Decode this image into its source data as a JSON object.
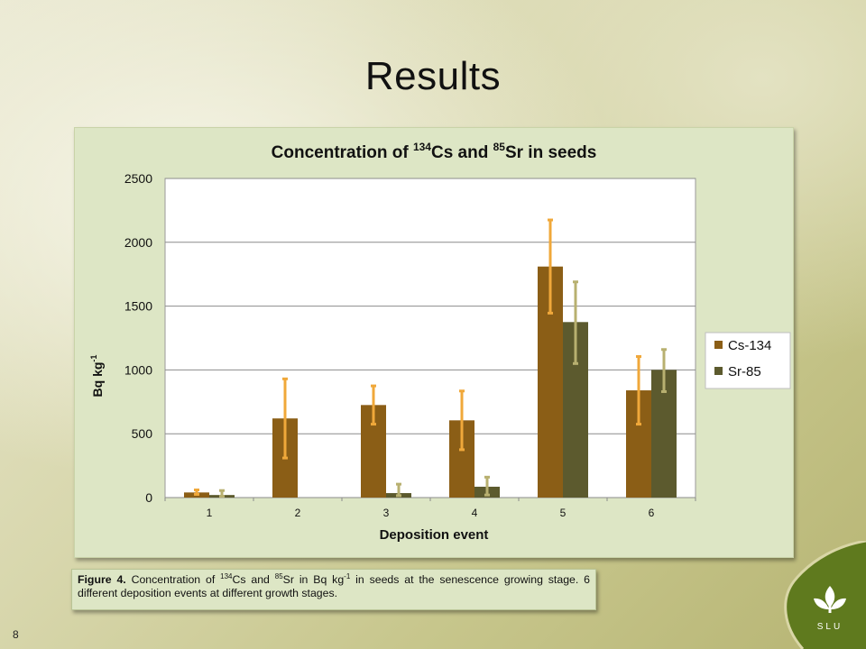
{
  "slide": {
    "title": "Results",
    "page_number": "8",
    "caption": {
      "label": "Figure 4.",
      "text_1": " Concentration of ",
      "sup_1": "134",
      "text_2": "Cs and ",
      "sup_2": "85",
      "text_3": "Sr in Bq kg",
      "sup_3": "-1",
      "text_4": " in seeds at the senescence growing stage. 6 different deposition events at different growth stages."
    },
    "logo_text": "SLU"
  },
  "chart_data": {
    "type": "bar",
    "title": {
      "part1": "Concentration of ",
      "sup1": "134",
      "part2": "Cs and ",
      "sup2": "85",
      "part3": "Sr in seeds"
    },
    "xlabel": "Deposition event",
    "ylabel": {
      "base": "Bq kg",
      "sup": "-1"
    },
    "categories": [
      "1",
      "2",
      "3",
      "4",
      "5",
      "6"
    ],
    "ylim": [
      0,
      2500
    ],
    "yticks": [
      0,
      500,
      1000,
      1500,
      2000,
      2500
    ],
    "grid": true,
    "legend_position": "right",
    "series": [
      {
        "name": "Cs-134",
        "color": "#8b5e16",
        "error_color": "#f0a83a",
        "values": [
          40,
          620,
          725,
          605,
          1810,
          840
        ],
        "error_low": [
          25,
          310,
          575,
          375,
          1445,
          575
        ],
        "error_high": [
          60,
          930,
          875,
          835,
          2175,
          1105
        ]
      },
      {
        "name": "Sr-85",
        "color": "#5c5a2e",
        "error_color": "#b8b070",
        "values": [
          20,
          0,
          35,
          85,
          1375,
          1000
        ],
        "error_low": [
          10,
          0,
          15,
          20,
          1050,
          830
        ],
        "error_high": [
          55,
          0,
          105,
          160,
          1690,
          1160
        ]
      }
    ]
  }
}
